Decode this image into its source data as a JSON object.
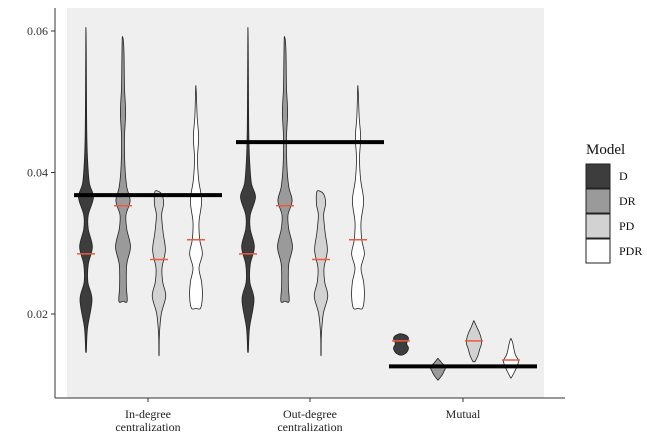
{
  "chart_data": {
    "type": "violin",
    "y_ticks": [
      "0.02",
      "0.04",
      "0.06"
    ],
    "y_tick_values": [
      0.02,
      0.04,
      0.06
    ],
    "ylim": [
      0.0105,
      0.0625
    ],
    "grid": false,
    "legend": {
      "title": "Model",
      "position": "right",
      "entries": [
        {
          "name": "D",
          "color": "#3d3d3d"
        },
        {
          "name": "DR",
          "color": "#9a9a9a"
        },
        {
          "name": "PD",
          "color": "#d2d2d2"
        },
        {
          "name": "PDR",
          "color": "#ffffff"
        }
      ]
    },
    "colors": {
      "panel_band": "#efefef",
      "median_line": "#f05a3c",
      "observed_line": "#000000",
      "outline": "#222222"
    },
    "categories": [
      {
        "label_lines": [
          "In-degree",
          "centralization"
        ],
        "observed": 0.0368,
        "violins": [
          {
            "model": "D",
            "min": 0.0148,
            "max": 0.0602,
            "median": 0.0285,
            "density": [
              [
                0.0148,
                0.05
              ],
              [
                0.018,
                0.2
              ],
              [
                0.022,
                0.8
              ],
              [
                0.0245,
                0.25
              ],
              [
                0.027,
                0.3
              ],
              [
                0.0295,
                0.85
              ],
              [
                0.032,
                0.3
              ],
              [
                0.034,
                0.3
              ],
              [
                0.0365,
                1.0
              ],
              [
                0.0385,
                0.45
              ],
              [
                0.042,
                0.2
              ],
              [
                0.046,
                0.1
              ],
              [
                0.052,
                0.06
              ],
              [
                0.056,
                0.04
              ],
              [
                0.0602,
                0.02
              ]
            ]
          },
          {
            "model": "DR",
            "min": 0.0218,
            "max": 0.059,
            "median": 0.0353,
            "density": [
              [
                0.0218,
                0.55
              ],
              [
                0.024,
                0.45
              ],
              [
                0.027,
                0.5
              ],
              [
                0.0295,
                1.0
              ],
              [
                0.032,
                0.5
              ],
              [
                0.034,
                0.4
              ],
              [
                0.036,
                0.95
              ],
              [
                0.038,
                0.5
              ],
              [
                0.041,
                0.25
              ],
              [
                0.045,
                0.2
              ],
              [
                0.0485,
                0.35
              ],
              [
                0.052,
                0.2
              ],
              [
                0.056,
                0.15
              ],
              [
                0.059,
                0.1
              ]
            ]
          },
          {
            "model": "PD",
            "min": 0.0143,
            "max": 0.0373,
            "median": 0.0277,
            "density": [
              [
                0.0143,
                0.02
              ],
              [
                0.017,
                0.05
              ],
              [
                0.02,
                0.3
              ],
              [
                0.0225,
                0.9
              ],
              [
                0.0245,
                0.5
              ],
              [
                0.0265,
                0.4
              ],
              [
                0.029,
                0.85
              ],
              [
                0.0315,
                0.55
              ],
              [
                0.034,
                0.35
              ],
              [
                0.0355,
                0.6
              ],
              [
                0.0373,
                0.55
              ]
            ]
          },
          {
            "model": "PDR",
            "min": 0.0208,
            "max": 0.052,
            "median": 0.0305,
            "density": [
              [
                0.0208,
                0.6
              ],
              [
                0.0225,
                0.85
              ],
              [
                0.0245,
                0.75
              ],
              [
                0.0265,
                0.4
              ],
              [
                0.0285,
                0.85
              ],
              [
                0.0305,
                0.5
              ],
              [
                0.033,
                0.4
              ],
              [
                0.036,
                0.75
              ],
              [
                0.039,
                0.35
              ],
              [
                0.042,
                0.2
              ],
              [
                0.045,
                0.35
              ],
              [
                0.048,
                0.15
              ],
              [
                0.052,
                0.04
              ]
            ]
          }
        ]
      },
      {
        "label_lines": [
          "Out-degree",
          "centralization"
        ],
        "observed": 0.0443,
        "violins": [
          {
            "model": "D",
            "min": 0.0148,
            "max": 0.0602,
            "median": 0.0285,
            "density": [
              [
                0.0148,
                0.05
              ],
              [
                0.018,
                0.2
              ],
              [
                0.022,
                0.8
              ],
              [
                0.0245,
                0.25
              ],
              [
                0.027,
                0.3
              ],
              [
                0.0295,
                0.85
              ],
              [
                0.032,
                0.3
              ],
              [
                0.034,
                0.3
              ],
              [
                0.0365,
                1.0
              ],
              [
                0.0385,
                0.45
              ],
              [
                0.042,
                0.2
              ],
              [
                0.046,
                0.1
              ],
              [
                0.052,
                0.06
              ],
              [
                0.056,
                0.04
              ],
              [
                0.0602,
                0.02
              ]
            ]
          },
          {
            "model": "DR",
            "min": 0.0218,
            "max": 0.059,
            "median": 0.0353,
            "density": [
              [
                0.0218,
                0.55
              ],
              [
                0.024,
                0.45
              ],
              [
                0.027,
                0.5
              ],
              [
                0.0295,
                1.0
              ],
              [
                0.032,
                0.5
              ],
              [
                0.034,
                0.4
              ],
              [
                0.036,
                0.95
              ],
              [
                0.038,
                0.5
              ],
              [
                0.041,
                0.25
              ],
              [
                0.045,
                0.2
              ],
              [
                0.0485,
                0.35
              ],
              [
                0.052,
                0.2
              ],
              [
                0.056,
                0.15
              ],
              [
                0.059,
                0.1
              ]
            ]
          },
          {
            "model": "PD",
            "min": 0.0143,
            "max": 0.0373,
            "median": 0.0277,
            "density": [
              [
                0.0143,
                0.02
              ],
              [
                0.017,
                0.05
              ],
              [
                0.02,
                0.3
              ],
              [
                0.0225,
                0.9
              ],
              [
                0.0245,
                0.5
              ],
              [
                0.0265,
                0.4
              ],
              [
                0.029,
                0.85
              ],
              [
                0.0315,
                0.55
              ],
              [
                0.034,
                0.35
              ],
              [
                0.0355,
                0.6
              ],
              [
                0.0373,
                0.55
              ]
            ]
          },
          {
            "model": "PDR",
            "min": 0.0208,
            "max": 0.052,
            "median": 0.0305,
            "density": [
              [
                0.0208,
                0.6
              ],
              [
                0.0225,
                0.85
              ],
              [
                0.0245,
                0.75
              ],
              [
                0.0265,
                0.4
              ],
              [
                0.0285,
                0.85
              ],
              [
                0.0305,
                0.5
              ],
              [
                0.033,
                0.4
              ],
              [
                0.036,
                0.75
              ],
              [
                0.039,
                0.35
              ],
              [
                0.042,
                0.2
              ],
              [
                0.045,
                0.35
              ],
              [
                0.048,
                0.15
              ],
              [
                0.052,
                0.04
              ]
            ]
          }
        ]
      },
      {
        "label_lines": [
          "Mutual"
        ],
        "observed": 0.0126,
        "violins": [
          {
            "model": "D",
            "min": 0.0142,
            "max": 0.0172,
            "median": 0.0162,
            "density": [
              [
                0.0142,
                0.2
              ],
              [
                0.0145,
                0.7
              ],
              [
                0.0152,
                1.0
              ],
              [
                0.0158,
                0.75
              ],
              [
                0.0165,
                1.0
              ],
              [
                0.0169,
                0.8
              ],
              [
                0.0172,
                0.2
              ]
            ]
          },
          {
            "model": "DR",
            "min": 0.0107,
            "max": 0.0137,
            "median": 0.0126,
            "density": [
              [
                0.0107,
                0.05
              ],
              [
                0.0113,
                0.5
              ],
              [
                0.0119,
                0.8
              ],
              [
                0.0125,
                1.0
              ],
              [
                0.0131,
                0.5
              ],
              [
                0.0137,
                0.05
              ]
            ]
          },
          {
            "model": "PD",
            "min": 0.0133,
            "max": 0.019,
            "median": 0.0162,
            "density": [
              [
                0.0133,
                0.15
              ],
              [
                0.0142,
                0.55
              ],
              [
                0.015,
                0.75
              ],
              [
                0.0158,
                1.0
              ],
              [
                0.0166,
                0.95
              ],
              [
                0.0174,
                0.7
              ],
              [
                0.0182,
                0.35
              ],
              [
                0.019,
                0.05
              ]
            ]
          },
          {
            "model": "PDR",
            "min": 0.011,
            "max": 0.0165,
            "median": 0.0135,
            "density": [
              [
                0.011,
                0.05
              ],
              [
                0.0118,
                0.45
              ],
              [
                0.0126,
                0.8
              ],
              [
                0.0134,
                1.0
              ],
              [
                0.0142,
                0.6
              ],
              [
                0.015,
                0.4
              ],
              [
                0.0158,
                0.25
              ],
              [
                0.0165,
                0.05
              ]
            ]
          }
        ]
      }
    ]
  }
}
